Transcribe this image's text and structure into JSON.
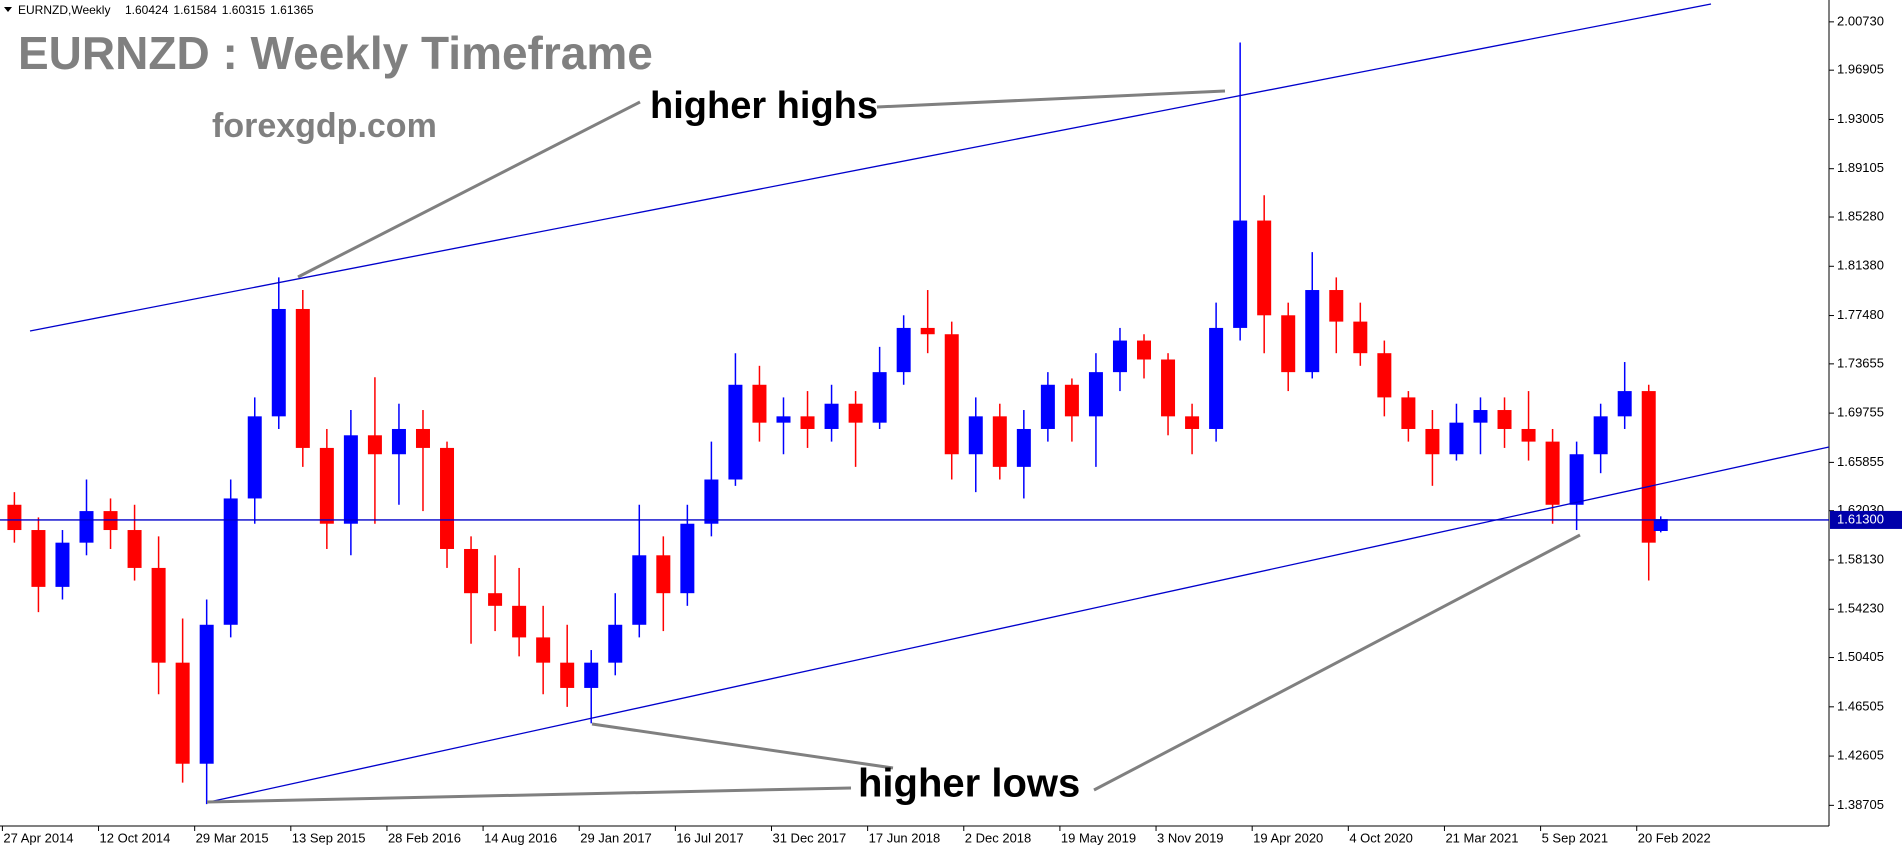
{
  "chart_data": {
    "type": "candlestick",
    "title": "EURNZD : Weekly Timeframe",
    "subtitle": "forexgdp.com",
    "symbol": "EURNZD,Weekly",
    "annotations": [
      "higher highs",
      "higher lows"
    ],
    "up_color": "#0000ff",
    "down_color": "#ff0000",
    "current_price": {
      "value": 1.613,
      "label": "1.61300"
    },
    "x": [
      "27 Apr 2014",
      "8 Jun 2014",
      "20 Jul 2014",
      "31 Aug 2014",
      "12 Oct 2014",
      "23 Nov 2014",
      "4 Jan 2015",
      "15 Feb 2015",
      "29 Mar 2015",
      "10 May 2015",
      "21 Jun 2015",
      "2 Aug 2015",
      "13 Sep 2015",
      "25 Oct 2015",
      "6 Dec 2015",
      "17 Jan 2016",
      "28 Feb 2016",
      "10 Apr 2016",
      "22 May 2016",
      "3 Jul 2016",
      "14 Aug 2016",
      "25 Sep 2016",
      "6 Nov 2016",
      "18 Dec 2016",
      "29 Jan 2017",
      "12 Mar 2017",
      "23 Apr 2017",
      "4 Jun 2017",
      "16 Jul 2017",
      "27 Aug 2017",
      "8 Oct 2017",
      "19 Nov 2017",
      "31 Dec 2017",
      "11 Feb 2018",
      "25 Mar 2018",
      "6 May 2018",
      "17 Jun 2018",
      "29 Jul 2018",
      "9 Sep 2018",
      "21 Oct 2018",
      "2 Dec 2018",
      "13 Jan 2019",
      "24 Feb 2019",
      "7 Apr 2019",
      "19 May 2019",
      "30 Jun 2019",
      "11 Aug 2019",
      "22 Sep 2019",
      "3 Nov 2019",
      "15 Dec 2019",
      "26 Jan 2020",
      "8 Mar 2020",
      "19 Apr 2020",
      "31 May 2020",
      "12 Jul 2020",
      "23 Aug 2020",
      "4 Oct 2020",
      "15 Nov 2020",
      "27 Dec 2020",
      "7 Feb 2021",
      "21 Mar 2021",
      "2 May 2021",
      "13 Jun 2021",
      "25 Jul 2021",
      "5 Sep 2021",
      "17 Oct 2021",
      "28 Nov 2021",
      "9 Jan 2022",
      "20 Feb 2022",
      "13 Mar 2022"
    ],
    "open": [
      1.625,
      1.605,
      1.56,
      1.595,
      1.62,
      1.605,
      1.575,
      1.5,
      1.42,
      1.53,
      1.63,
      1.695,
      1.78,
      1.67,
      1.61,
      1.68,
      1.665,
      1.685,
      1.67,
      1.59,
      1.555,
      1.545,
      1.52,
      1.5,
      1.48,
      1.5,
      1.53,
      1.585,
      1.555,
      1.61,
      1.645,
      1.72,
      1.69,
      1.695,
      1.685,
      1.705,
      1.69,
      1.73,
      1.765,
      1.76,
      1.665,
      1.695,
      1.655,
      1.685,
      1.72,
      1.695,
      1.73,
      1.755,
      1.74,
      1.695,
      1.685,
      1.765,
      1.85,
      1.775,
      1.73,
      1.795,
      1.77,
      1.745,
      1.71,
      1.685,
      1.665,
      1.69,
      1.7,
      1.685,
      1.675,
      1.625,
      1.665,
      1.695,
      1.715,
      1.60424
    ],
    "high": [
      1.635,
      1.615,
      1.605,
      1.645,
      1.63,
      1.625,
      1.6,
      1.535,
      1.55,
      1.645,
      1.71,
      1.805,
      1.795,
      1.685,
      1.7,
      1.726,
      1.705,
      1.7,
      1.675,
      1.6,
      1.585,
      1.575,
      1.545,
      1.53,
      1.51,
      1.555,
      1.625,
      1.6,
      1.625,
      1.675,
      1.745,
      1.735,
      1.71,
      1.715,
      1.72,
      1.715,
      1.75,
      1.775,
      1.795,
      1.77,
      1.71,
      1.705,
      1.7,
      1.73,
      1.725,
      1.745,
      1.765,
      1.76,
      1.745,
      1.705,
      1.785,
      1.991,
      1.87,
      1.785,
      1.825,
      1.805,
      1.785,
      1.755,
      1.715,
      1.7,
      1.705,
      1.71,
      1.71,
      1.715,
      1.685,
      1.675,
      1.705,
      1.738,
      1.72,
      1.61584
    ],
    "low": [
      1.595,
      1.54,
      1.55,
      1.585,
      1.59,
      1.565,
      1.475,
      1.405,
      1.388,
      1.52,
      1.61,
      1.685,
      1.655,
      1.59,
      1.585,
      1.61,
      1.625,
      1.62,
      1.575,
      1.515,
      1.525,
      1.505,
      1.475,
      1.465,
      1.452,
      1.49,
      1.52,
      1.525,
      1.545,
      1.6,
      1.64,
      1.675,
      1.665,
      1.67,
      1.675,
      1.655,
      1.685,
      1.72,
      1.745,
      1.645,
      1.635,
      1.645,
      1.63,
      1.675,
      1.675,
      1.655,
      1.715,
      1.725,
      1.68,
      1.665,
      1.675,
      1.755,
      1.745,
      1.715,
      1.725,
      1.745,
      1.735,
      1.695,
      1.675,
      1.64,
      1.66,
      1.665,
      1.67,
      1.66,
      1.61,
      1.605,
      1.65,
      1.685,
      1.565,
      1.60315
    ],
    "close": [
      1.605,
      1.56,
      1.595,
      1.62,
      1.605,
      1.575,
      1.5,
      1.42,
      1.53,
      1.63,
      1.695,
      1.78,
      1.67,
      1.61,
      1.68,
      1.665,
      1.685,
      1.67,
      1.59,
      1.555,
      1.545,
      1.52,
      1.5,
      1.48,
      1.5,
      1.53,
      1.585,
      1.555,
      1.61,
      1.645,
      1.72,
      1.69,
      1.695,
      1.685,
      1.705,
      1.69,
      1.73,
      1.765,
      1.76,
      1.665,
      1.695,
      1.655,
      1.685,
      1.72,
      1.695,
      1.73,
      1.755,
      1.74,
      1.695,
      1.685,
      1.765,
      1.85,
      1.775,
      1.73,
      1.795,
      1.77,
      1.745,
      1.71,
      1.685,
      1.665,
      1.69,
      1.7,
      1.685,
      1.675,
      1.625,
      1.665,
      1.695,
      1.715,
      1.595,
      1.61365
    ],
    "xlim": [
      "27 Apr 2014",
      "22 Jan 2023"
    ],
    "xticks": [
      "27 Apr 2014",
      "12 Oct 2014",
      "29 Mar 2015",
      "13 Sep 2015",
      "28 Feb 2016",
      "14 Aug 2016",
      "29 Jan 2017",
      "16 Jul 2017",
      "31 Dec 2017",
      "17 Jun 2018",
      "2 Dec 2018",
      "19 May 2019",
      "3 Nov 2019",
      "19 Apr 2020",
      "4 Oct 2020",
      "21 Mar 2021",
      "5 Sep 2021",
      "20 Feb 2022"
    ],
    "ylim": [
      1.3707,
      2.0246
    ],
    "yticks": [
      {
        "value": 2.0073,
        "label": "2.00730"
      },
      1.96905,
      1.93005,
      1.89105,
      {
        "value": 1.8528,
        "label": "1.85280"
      },
      {
        "value": 1.8138,
        "label": "1.81380"
      },
      {
        "value": 1.7748,
        "label": "1.77480"
      },
      1.73655,
      1.69755,
      1.65855,
      {
        "value": 1.6203,
        "label": "1.62030"
      },
      {
        "value": 1.5813,
        "label": "1.58130"
      },
      {
        "value": 1.5423,
        "label": "1.54230"
      },
      1.50405,
      1.46505,
      1.42605,
      1.38705
    ]
  }
}
